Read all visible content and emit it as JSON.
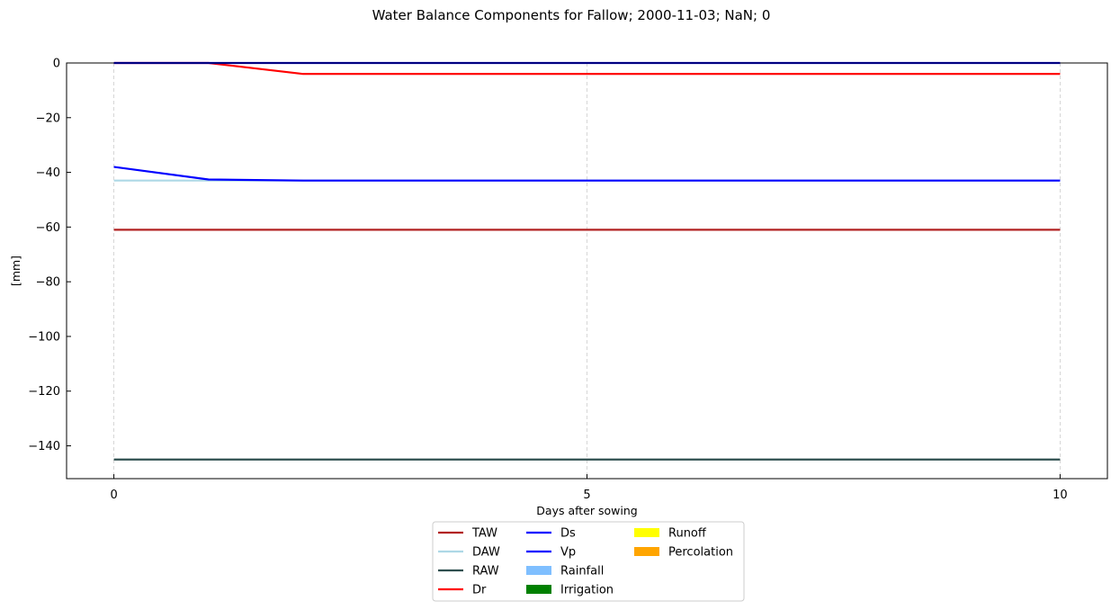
{
  "chart_data": {
    "type": "line",
    "title": "Water Balance Components for Fallow; 2000-11-03; NaN; 0",
    "xlabel": "Days after sowing",
    "ylabel": "[mm]",
    "xlim": [
      -0.5,
      10.5
    ],
    "ylim": [
      -152,
      0
    ],
    "xticks": [
      0,
      5,
      10
    ],
    "yticks": [
      0,
      -20,
      -40,
      -60,
      -80,
      -100,
      -120,
      -140
    ],
    "x_grid": true,
    "y_grid": false,
    "legend_position": "bottom-center",
    "legend_columns": 3,
    "series": [
      {
        "name": "TAW",
        "kind": "line",
        "color": "#b22222",
        "x": [
          0,
          1,
          2,
          3,
          4,
          5,
          6,
          7,
          8,
          9,
          10
        ],
        "values": [
          -61,
          -61,
          -61,
          -61,
          -61,
          -61,
          -61,
          -61,
          -61,
          -61,
          -61
        ]
      },
      {
        "name": "DAW",
        "kind": "line",
        "color": "#add8e6",
        "x": [
          0,
          1,
          2,
          3,
          4,
          5,
          6,
          7,
          8,
          9,
          10
        ],
        "values": [
          -43,
          -43,
          -43,
          -43,
          -43,
          -43,
          -43,
          -43,
          -43,
          -43,
          -43
        ]
      },
      {
        "name": "RAW",
        "kind": "line",
        "color": "#2f4f4f",
        "x": [
          0,
          1,
          2,
          3,
          4,
          5,
          6,
          7,
          8,
          9,
          10
        ],
        "values": [
          -145,
          -145,
          -145,
          -145,
          -145,
          -145,
          -145,
          -145,
          -145,
          -145,
          -145
        ]
      },
      {
        "name": "Dr",
        "kind": "line",
        "color": "#ff0000",
        "x": [
          0,
          1,
          2,
          3,
          4,
          5,
          6,
          7,
          8,
          9,
          10
        ],
        "values": [
          0,
          0,
          -4,
          -4,
          -4,
          -4,
          -4,
          -4,
          -4,
          -4,
          -4
        ]
      },
      {
        "name": "Ds",
        "kind": "line",
        "color": "#0000ff",
        "x": [
          0,
          1,
          2,
          3,
          4,
          5,
          6,
          7,
          8,
          9,
          10
        ],
        "values": [
          -38,
          -42.6,
          -43,
          -43,
          -43,
          -43,
          -43,
          -43,
          -43,
          -43,
          -43
        ]
      },
      {
        "name": "Vp",
        "kind": "line",
        "color": "#0000ff",
        "x": [
          0,
          1,
          2,
          3,
          4,
          5,
          6,
          7,
          8,
          9,
          10
        ],
        "values": [
          0,
          0,
          0,
          0,
          0,
          0,
          0,
          0,
          0,
          0,
          0
        ]
      },
      {
        "name": "Rainfall",
        "kind": "bar",
        "color": "#7fbfff",
        "x": [],
        "values": []
      },
      {
        "name": "Irrigation",
        "kind": "bar",
        "color": "#008000",
        "x": [],
        "values": []
      },
      {
        "name": "Runoff",
        "kind": "bar",
        "color": "#ffff00",
        "x": [],
        "values": []
      },
      {
        "name": "Percolation",
        "kind": "bar",
        "color": "#ffa500",
        "x": [],
        "values": []
      }
    ],
    "legend_order": [
      "TAW",
      "DAW",
      "RAW",
      "Dr",
      "Ds",
      "Vp",
      "Rainfall",
      "Irrigation",
      "Runoff",
      "Percolation"
    ]
  }
}
